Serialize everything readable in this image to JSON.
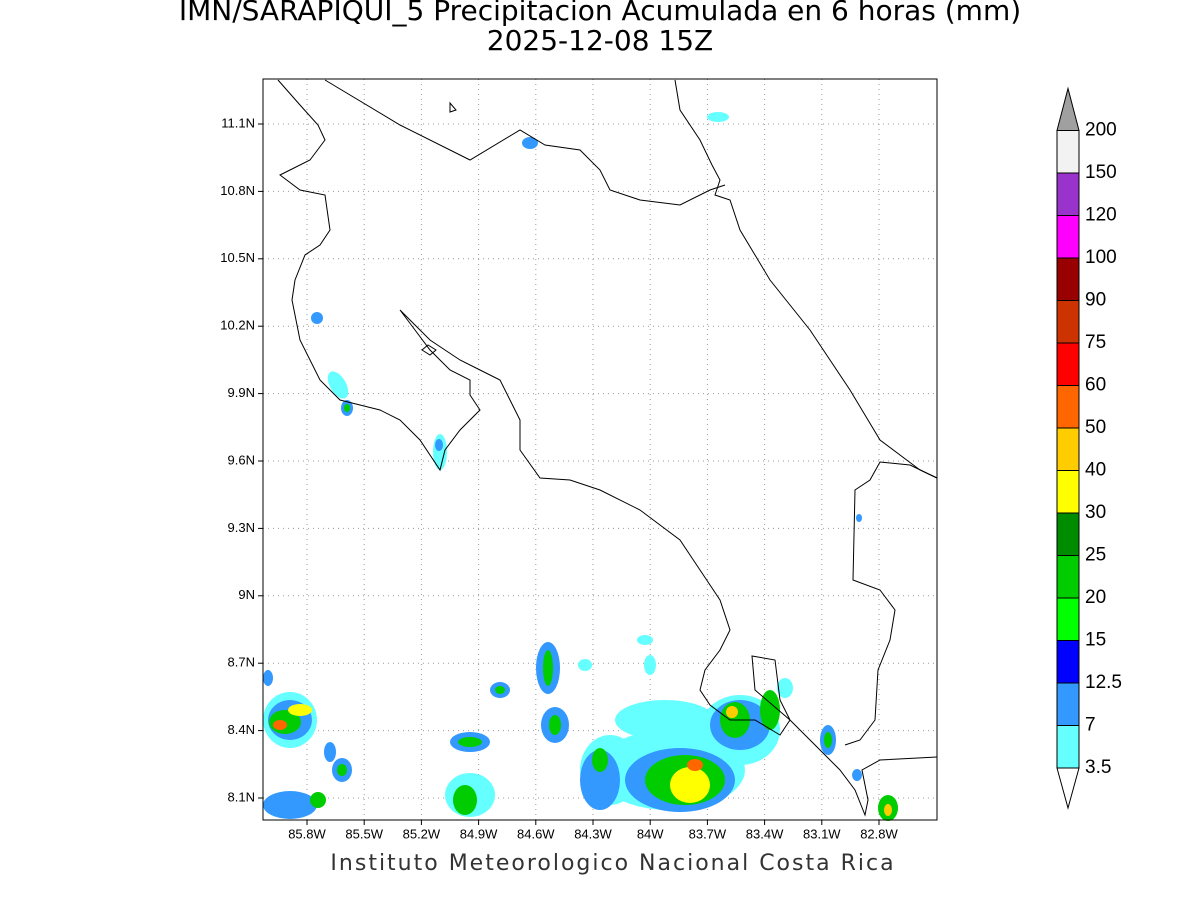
{
  "header": {
    "title": "IMN/SARAPIQUI_5 Precipitacion Acumulada en 6 horas (mm)",
    "subtitle": "2025-12-08 15Z"
  },
  "map": {
    "lat_ticks": [
      "11.1N",
      "10.8N",
      "10.5N",
      "10.2N",
      "9.9N",
      "9.6N",
      "9.3N",
      "9N",
      "8.7N",
      "8.4N",
      "8.1N"
    ],
    "lon_ticks": [
      "85.8W",
      "85.5W",
      "85.2W",
      "84.9W",
      "84.6W",
      "84.3W",
      "84W",
      "83.7W",
      "83.4W",
      "83.1W",
      "82.8W"
    ]
  },
  "colorbar": {
    "levels": [
      "3.5",
      "7",
      "12.5",
      "15",
      "20",
      "25",
      "30",
      "40",
      "50",
      "60",
      "75",
      "90",
      "100",
      "120",
      "150",
      "200"
    ],
    "colors": [
      "#66ffff",
      "#3399ff",
      "#0000ff",
      "#00ff00",
      "#00cc00",
      "#008c00",
      "#ffff00",
      "#ffcc00",
      "#ff6600",
      "#ff0000",
      "#cc3300",
      "#990000",
      "#ff00ff",
      "#9933cc",
      "#f2f2f2"
    ],
    "under_color": "#ffffff",
    "over_color": "#a0a0a0"
  },
  "footer": {
    "credit": "Instituto Meteorologico Nacional Costa Rica"
  }
}
